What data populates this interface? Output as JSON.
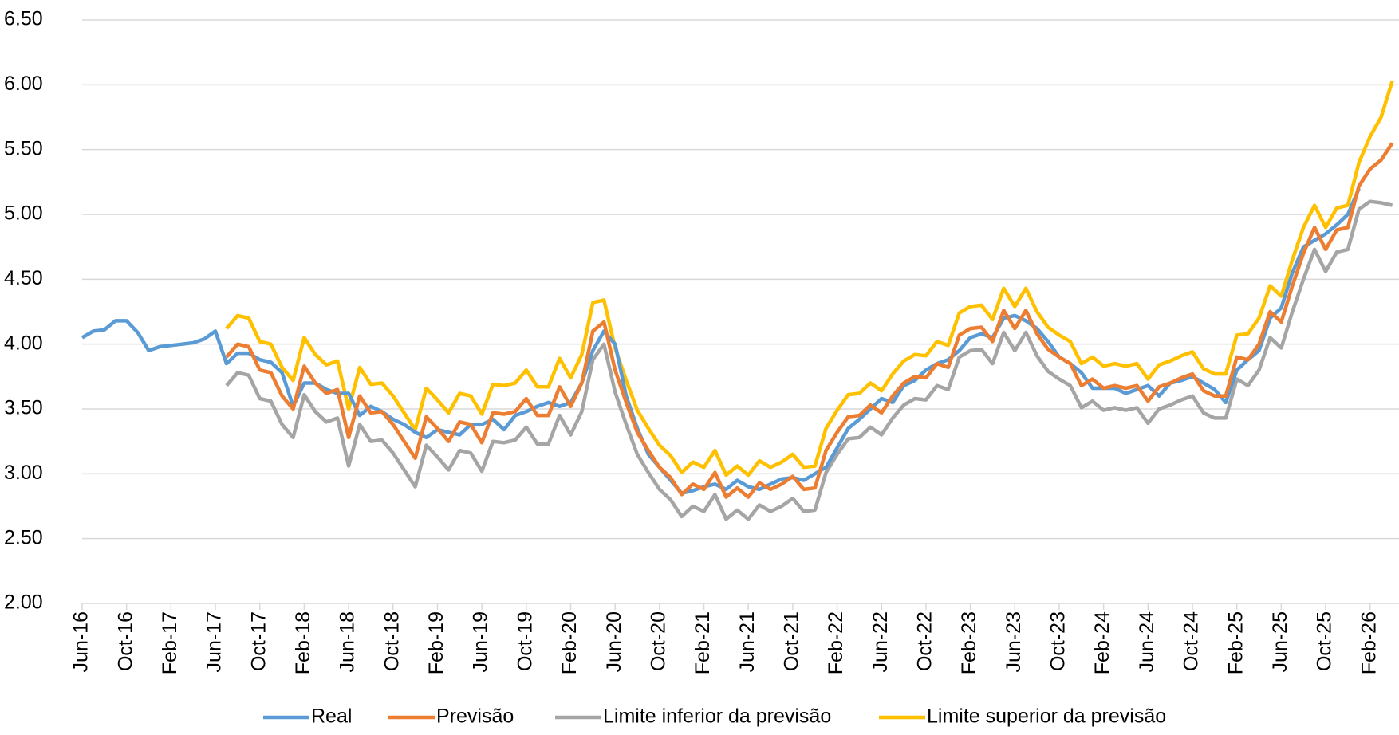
{
  "chart_data": {
    "type": "line",
    "categories": [
      "Jun-16",
      null,
      null,
      null,
      "Oct-16",
      null,
      null,
      null,
      "Feb-17",
      null,
      null,
      null,
      "Jun-17",
      null,
      null,
      null,
      "Oct-17",
      null,
      null,
      null,
      "Feb-18",
      null,
      null,
      null,
      "Jun-18",
      null,
      null,
      null,
      "Oct-18",
      null,
      null,
      null,
      "Feb-19",
      null,
      null,
      null,
      "Jun-19",
      null,
      null,
      null,
      "Oct-19",
      null,
      null,
      null,
      "Feb-20",
      null,
      null,
      null,
      "Jun-20",
      null,
      null,
      null,
      "Oct-20",
      null,
      null,
      null,
      "Feb-21",
      null,
      null,
      null,
      "Jun-21",
      null,
      null,
      null,
      "Oct-21",
      null,
      null,
      null,
      "Feb-22",
      null,
      null,
      null,
      "Jun-22",
      null,
      null,
      null,
      "Oct-22",
      null,
      null,
      null,
      "Feb-23",
      null,
      null,
      null,
      "Jun-23",
      null,
      null,
      null,
      "Oct-23",
      null,
      null,
      null,
      "Feb-24",
      null,
      null,
      null,
      "Jun-24",
      null,
      null,
      null,
      "Oct-24",
      null,
      null,
      null,
      "Feb-25",
      null,
      null,
      null,
      "Jun-25",
      null,
      null,
      null,
      "Oct-25",
      null,
      null,
      null,
      "Feb-26",
      null,
      null
    ],
    "series": [
      {
        "name": "Real",
        "color": "#5b9bd5",
        "values": [
          4.05,
          4.1,
          4.11,
          4.18,
          4.18,
          4.09,
          3.95,
          3.98,
          3.99,
          4.0,
          4.01,
          4.04,
          4.1,
          3.85,
          3.93,
          3.93,
          3.88,
          3.86,
          3.78,
          3.52,
          3.7,
          3.7,
          3.65,
          3.62,
          3.62,
          3.45,
          3.52,
          3.48,
          3.42,
          3.38,
          3.32,
          3.28,
          3.34,
          3.32,
          3.3,
          3.38,
          3.38,
          3.42,
          3.34,
          3.45,
          3.48,
          3.52,
          3.55,
          3.52,
          3.55,
          3.7,
          3.95,
          4.1,
          4.0,
          3.6,
          3.35,
          3.15,
          3.05,
          2.95,
          2.85,
          2.87,
          2.9,
          2.92,
          2.88,
          2.95,
          2.9,
          2.88,
          2.92,
          2.96,
          2.97,
          2.95,
          3.0,
          3.05,
          3.2,
          3.35,
          3.42,
          3.5,
          3.58,
          3.55,
          3.68,
          3.72,
          3.8,
          3.85,
          3.88,
          3.95,
          4.05,
          4.08,
          4.05,
          4.2,
          4.22,
          4.18,
          4.12,
          4.02,
          3.9,
          3.85,
          3.78,
          3.66,
          3.66,
          3.66,
          3.62,
          3.65,
          3.68,
          3.6,
          3.7,
          3.72,
          3.75,
          3.7,
          3.65,
          3.55,
          3.8,
          3.88,
          3.95,
          4.2,
          4.28,
          4.55,
          4.75,
          4.8,
          4.85,
          4.92,
          5.0,
          5.2,
          null,
          null,
          null
        ]
      },
      {
        "name": "Previsão",
        "color": "#ed7d31",
        "values": [
          null,
          null,
          null,
          null,
          null,
          null,
          null,
          null,
          null,
          null,
          null,
          null,
          null,
          3.9,
          4.0,
          3.98,
          3.8,
          3.78,
          3.6,
          3.5,
          3.83,
          3.7,
          3.62,
          3.65,
          3.28,
          3.6,
          3.47,
          3.48,
          3.38,
          3.25,
          3.12,
          3.44,
          3.35,
          3.25,
          3.4,
          3.38,
          3.24,
          3.47,
          3.46,
          3.48,
          3.58,
          3.45,
          3.45,
          3.67,
          3.52,
          3.7,
          4.1,
          4.17,
          3.8,
          3.55,
          3.32,
          3.18,
          3.05,
          2.97,
          2.84,
          2.92,
          2.88,
          3.01,
          2.82,
          2.89,
          2.82,
          2.93,
          2.88,
          2.92,
          2.98,
          2.88,
          2.89,
          3.18,
          3.32,
          3.44,
          3.45,
          3.53,
          3.47,
          3.6,
          3.7,
          3.75,
          3.74,
          3.85,
          3.82,
          4.07,
          4.12,
          4.13,
          4.02,
          4.26,
          4.12,
          4.26,
          4.08,
          3.96,
          3.9,
          3.85,
          3.68,
          3.73,
          3.66,
          3.68,
          3.66,
          3.68,
          3.56,
          3.67,
          3.7,
          3.74,
          3.77,
          3.64,
          3.6,
          3.6,
          3.9,
          3.88,
          4.0,
          4.25,
          4.17,
          4.45,
          4.7,
          4.9,
          4.73,
          4.88,
          4.9,
          5.22,
          5.35,
          5.42,
          5.55
        ]
      },
      {
        "name": "Limite inferior da previsão",
        "color": "#a5a5a5",
        "values": [
          null,
          null,
          null,
          null,
          null,
          null,
          null,
          null,
          null,
          null,
          null,
          null,
          null,
          3.68,
          3.78,
          3.76,
          3.58,
          3.56,
          3.38,
          3.28,
          3.61,
          3.48,
          3.4,
          3.43,
          3.06,
          3.38,
          3.25,
          3.26,
          3.16,
          3.03,
          2.9,
          3.22,
          3.13,
          3.03,
          3.18,
          3.16,
          3.02,
          3.25,
          3.24,
          3.26,
          3.36,
          3.23,
          3.23,
          3.45,
          3.3,
          3.48,
          3.88,
          4.0,
          3.63,
          3.38,
          3.15,
          3.01,
          2.88,
          2.8,
          2.67,
          2.75,
          2.71,
          2.84,
          2.65,
          2.72,
          2.65,
          2.76,
          2.71,
          2.75,
          2.81,
          2.71,
          2.72,
          3.01,
          3.15,
          3.27,
          3.28,
          3.36,
          3.3,
          3.43,
          3.53,
          3.58,
          3.57,
          3.68,
          3.65,
          3.9,
          3.95,
          3.96,
          3.85,
          4.09,
          3.95,
          4.09,
          3.91,
          3.79,
          3.73,
          3.68,
          3.51,
          3.56,
          3.49,
          3.51,
          3.49,
          3.51,
          3.39,
          3.5,
          3.53,
          3.57,
          3.6,
          3.47,
          3.43,
          3.43,
          3.73,
          3.68,
          3.8,
          4.05,
          3.97,
          4.25,
          4.5,
          4.73,
          4.56,
          4.71,
          4.73,
          5.04,
          5.1,
          5.09,
          5.07
        ]
      },
      {
        "name": "Limite superior da previsão",
        "color": "#ffc000",
        "values": [
          null,
          null,
          null,
          null,
          null,
          null,
          null,
          null,
          null,
          null,
          null,
          null,
          null,
          4.12,
          4.22,
          4.2,
          4.02,
          4.0,
          3.82,
          3.72,
          4.05,
          3.92,
          3.84,
          3.87,
          3.5,
          3.82,
          3.69,
          3.7,
          3.6,
          3.47,
          3.34,
          3.66,
          3.57,
          3.47,
          3.62,
          3.6,
          3.46,
          3.69,
          3.68,
          3.7,
          3.8,
          3.67,
          3.67,
          3.89,
          3.74,
          3.92,
          4.32,
          4.34,
          3.97,
          3.72,
          3.49,
          3.35,
          3.22,
          3.14,
          3.01,
          3.09,
          3.05,
          3.18,
          2.99,
          3.06,
          2.99,
          3.1,
          3.05,
          3.09,
          3.15,
          3.05,
          3.06,
          3.35,
          3.49,
          3.61,
          3.62,
          3.7,
          3.64,
          3.77,
          3.87,
          3.92,
          3.91,
          4.02,
          3.99,
          4.24,
          4.29,
          4.3,
          4.19,
          4.43,
          4.29,
          4.43,
          4.25,
          4.13,
          4.07,
          4.02,
          3.85,
          3.9,
          3.83,
          3.85,
          3.83,
          3.85,
          3.73,
          3.84,
          3.87,
          3.91,
          3.94,
          3.81,
          3.77,
          3.77,
          4.07,
          4.08,
          4.2,
          4.45,
          4.37,
          4.65,
          4.9,
          5.07,
          4.9,
          5.05,
          5.07,
          5.4,
          5.6,
          5.75,
          6.03
        ]
      }
    ],
    "ylim": [
      2,
      6.5
    ],
    "yticks": [
      {
        "value": 2,
        "label": "2.00"
      },
      {
        "value": 2.5,
        "label": "2.50"
      },
      {
        "value": 3,
        "label": "3.00"
      },
      {
        "value": 3.5,
        "label": "3.50"
      },
      {
        "value": 4,
        "label": "4.00"
      },
      {
        "value": 4.5,
        "label": "4.50"
      },
      {
        "value": 5,
        "label": "5.00"
      },
      {
        "value": 5.5,
        "label": "5.50"
      },
      {
        "value": 6,
        "label": "6.00"
      },
      {
        "value": 6.5,
        "label": "6.50"
      }
    ],
    "grid": true,
    "legend": "bottom"
  }
}
